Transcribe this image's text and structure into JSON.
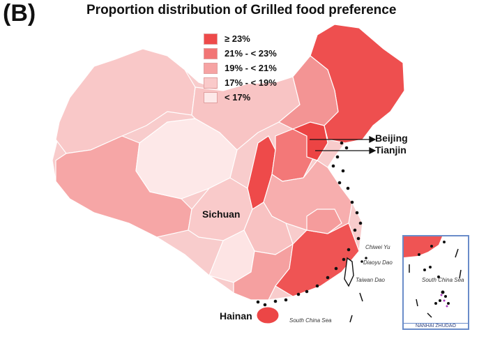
{
  "panel_label": "(B)",
  "title": "Proportion distribution of Grilled food preference",
  "legend": [
    {
      "label": "≥ 23%",
      "color": "#ee4a4a"
    },
    {
      "label": "21%  - < 23%",
      "color": "#f27575"
    },
    {
      "label": "19%  - < 21%",
      "color": "#f6a3a3"
    },
    {
      "label": "17%  - < 19%",
      "color": "#facaca"
    },
    {
      "label": "< 17%",
      "color": "#fde9e9"
    }
  ],
  "places": {
    "beijing": "Beijing",
    "tianjin": "Tianjin",
    "sichuan": "Sichuan",
    "hainan": "Hainan"
  },
  "islands": {
    "chiwei": "Chiwei Yu",
    "diaoyu": "Diaoyu Dao",
    "taiwan": "Taiwan Dao",
    "scs_main": "South China Sea",
    "scs_inset": "South China Sea"
  },
  "inset_title": "NANHAI ZHUDAO"
}
